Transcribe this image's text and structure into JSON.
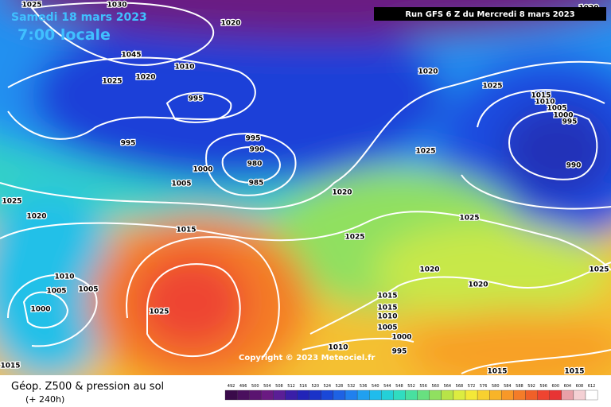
{
  "header": {
    "date": "Samedi 18 mars 2023",
    "time": "7:00 locale",
    "run": "Run GFS 6 Z du Mercredi 8 mars 2023"
  },
  "footer": {
    "title": "Géop. Z500 & pression au sol",
    "subtitle": "(+ 240h)",
    "copyright": "Copyright © 2023 Meteociel.fr"
  },
  "legend": {
    "values": [
      492,
      496,
      500,
      504,
      508,
      512,
      516,
      520,
      524,
      528,
      532,
      536,
      540,
      544,
      548,
      552,
      556,
      560,
      564,
      568,
      572,
      576,
      580,
      584,
      588,
      592,
      596,
      600,
      604,
      608,
      612
    ],
    "colors": [
      "#3a0a4a",
      "#4a0f5e",
      "#5a1470",
      "#6a1a82",
      "#5a1e96",
      "#3a1ea8",
      "#2224b8",
      "#1a32c8",
      "#1a48d8",
      "#1e62e4",
      "#2080ee",
      "#20a0f0",
      "#20bcec",
      "#24d0d8",
      "#30dcc0",
      "#48e0a0",
      "#68e080",
      "#90e060",
      "#b8e448",
      "#dcec40",
      "#f4e838",
      "#f8d030",
      "#f8b428",
      "#f89828",
      "#f47c28",
      "#f06028",
      "#ee4430",
      "#e83434",
      "#e8a0a8",
      "#f4d0d4",
      "#ffffff"
    ]
  },
  "isobar_labels": [
    "1025",
    "1030",
    "1020",
    "1045",
    "1025",
    "1020",
    "1010",
    "995",
    "995",
    "995",
    "990",
    "980",
    "985",
    "1000",
    "1005",
    "1020",
    "1025",
    "1020",
    "1015",
    "1025",
    "1020",
    "1020",
    "1025",
    "1020",
    "1015",
    "1010",
    "1005",
    "1000",
    "995",
    "990",
    "1025",
    "1025",
    "1025",
    "1020",
    "1010",
    "1005",
    "1005",
    "1000",
    "1025",
    "1015",
    "1015",
    "1010",
    "1005",
    "1000",
    "995",
    "1010",
    "1015",
    "1015",
    "1015"
  ]
}
